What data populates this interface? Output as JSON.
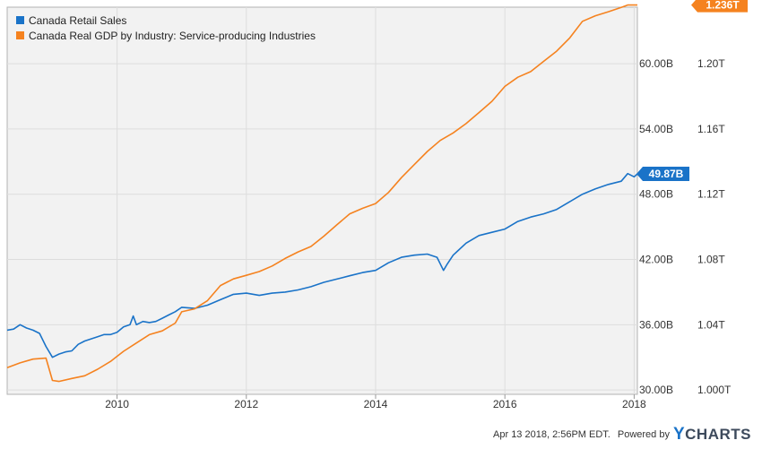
{
  "chart_data": {
    "type": "line",
    "x_ticks": [
      "2010",
      "2012",
      "2014",
      "2016",
      "2018"
    ],
    "x_range": [
      2008.3,
      2018.05
    ],
    "left_axis": {
      "ticks": [
        "30.00B",
        "36.00B",
        "42.00B",
        "48.00B",
        "54.00B",
        "60.00B"
      ],
      "tick_values": [
        30,
        36,
        42,
        48,
        54,
        60
      ],
      "range": [
        29.6,
        65.2
      ]
    },
    "right_axis": {
      "ticks": [
        "1.000T",
        "1.04T",
        "1.08T",
        "1.12T",
        "1.16T",
        "1.20T"
      ],
      "tick_values": [
        1.0,
        1.04,
        1.08,
        1.12,
        1.16,
        1.2
      ],
      "range": [
        0.9973,
        1.2347
      ]
    },
    "grid": true,
    "legend_position": "top-left",
    "series": [
      {
        "name": "Canada Retail Sales",
        "color": "#1a73c8",
        "axis": "left",
        "last_value_label": "49.87B",
        "x": [
          2008.3,
          2008.4,
          2008.5,
          2008.6,
          2008.7,
          2008.8,
          2008.9,
          2009.0,
          2009.1,
          2009.2,
          2009.3,
          2009.4,
          2009.5,
          2009.6,
          2009.7,
          2009.8,
          2009.9,
          2010.0,
          2010.1,
          2010.2,
          2010.25,
          2010.3,
          2010.4,
          2010.5,
          2010.6,
          2010.7,
          2010.8,
          2010.9,
          2011.0,
          2011.2,
          2011.4,
          2011.6,
          2011.8,
          2012.0,
          2012.2,
          2012.4,
          2012.6,
          2012.8,
          2013.0,
          2013.2,
          2013.4,
          2013.6,
          2013.8,
          2014.0,
          2014.2,
          2014.4,
          2014.6,
          2014.8,
          2014.95,
          2015.05,
          2015.1,
          2015.2,
          2015.4,
          2015.6,
          2015.8,
          2016.0,
          2016.2,
          2016.4,
          2016.6,
          2016.8,
          2017.0,
          2017.2,
          2017.4,
          2017.6,
          2017.8,
          2017.9,
          2018.0,
          2018.05
        ],
        "values": [
          35.5,
          35.6,
          36.0,
          35.7,
          35.5,
          35.2,
          34.0,
          33.0,
          33.3,
          33.5,
          33.6,
          34.2,
          34.5,
          34.7,
          34.9,
          35.1,
          35.1,
          35.3,
          35.8,
          36.0,
          36.8,
          36.0,
          36.3,
          36.2,
          36.3,
          36.6,
          36.9,
          37.2,
          37.6,
          37.5,
          37.8,
          38.3,
          38.8,
          38.9,
          38.7,
          38.9,
          39.0,
          39.2,
          39.5,
          39.9,
          40.2,
          40.5,
          40.8,
          41.0,
          41.7,
          42.2,
          42.4,
          42.5,
          42.2,
          41.0,
          41.5,
          42.4,
          43.5,
          44.2,
          44.5,
          44.8,
          45.5,
          45.9,
          46.2,
          46.6,
          47.3,
          48.0,
          48.5,
          48.9,
          49.2,
          49.9,
          49.6,
          49.87
        ]
      },
      {
        "name": "Canada Real GDP by Industry: Service-producing Industries",
        "color": "#f5821f",
        "axis": "right",
        "last_value_label": "1.236T",
        "x": [
          2008.3,
          2008.5,
          2008.7,
          2008.9,
          2009.0,
          2009.1,
          2009.3,
          2009.5,
          2009.7,
          2009.9,
          2010.1,
          2010.3,
          2010.5,
          2010.7,
          2010.9,
          2011.0,
          2011.2,
          2011.4,
          2011.6,
          2011.8,
          2012.0,
          2012.2,
          2012.4,
          2012.6,
          2012.8,
          2013.0,
          2013.2,
          2013.4,
          2013.6,
          2013.8,
          2014.0,
          2014.2,
          2014.4,
          2014.6,
          2014.8,
          2015.0,
          2015.2,
          2015.4,
          2015.6,
          2015.8,
          2016.0,
          2016.2,
          2016.4,
          2016.6,
          2016.8,
          2017.0,
          2017.2,
          2017.4,
          2017.6,
          2017.8,
          2017.9,
          2018.0,
          2018.05
        ],
        "values": [
          1.0137,
          1.0166,
          1.0189,
          1.0195,
          1.0058,
          1.0052,
          1.007,
          1.0087,
          1.0127,
          1.0175,
          1.0237,
          1.0288,
          1.0339,
          1.0362,
          1.041,
          1.0479,
          1.0497,
          1.0548,
          1.064,
          1.0681,
          1.0703,
          1.0726,
          1.076,
          1.0806,
          1.0846,
          1.088,
          1.0943,
          1.1012,
          1.108,
          1.1114,
          1.1143,
          1.1211,
          1.1302,
          1.1382,
          1.1462,
          1.153,
          1.1576,
          1.1633,
          1.1701,
          1.177,
          1.1861,
          1.1917,
          1.1952,
          1.2015,
          1.2077,
          1.2157,
          1.226,
          1.2294,
          1.2319,
          1.2346,
          1.236,
          1.236,
          1.236
        ]
      }
    ]
  },
  "footer": {
    "timestamp": "Apr 13 2018, 2:56PM EDT.",
    "powered_by": "Powered by",
    "logo_y": "Y",
    "logo_rest": "CHARTS"
  }
}
